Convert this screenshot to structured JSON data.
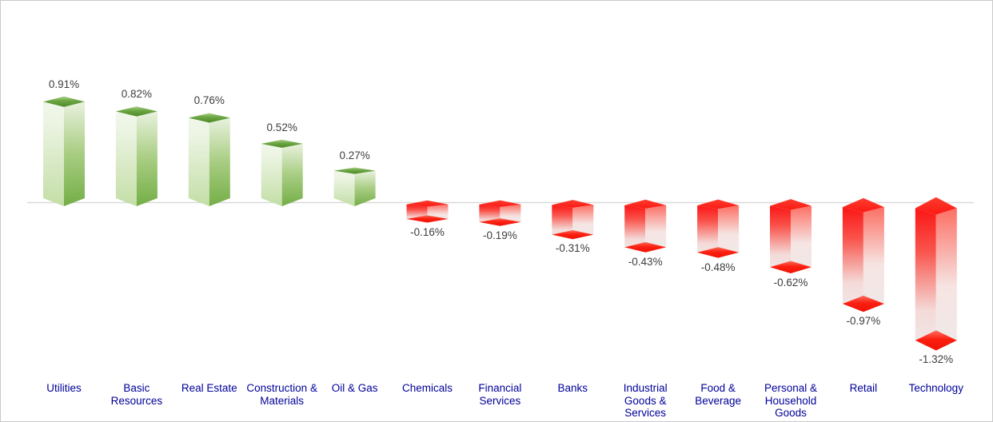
{
  "chart_data": {
    "type": "bar",
    "style": "3d-column",
    "title": "",
    "xlabel": "",
    "ylabel": "",
    "grid": false,
    "legend": "none",
    "ylim": [
      -1.5,
      1.0
    ],
    "categories": [
      "Utilities",
      "Basic\nResources",
      "Real Estate",
      "Construction &\nMaterials",
      "Oil & Gas",
      "Chemicals",
      "Financial\nServices",
      "Banks",
      "Industrial\nGoods &\nServices",
      "Food &\nBeverage",
      "Personal &\nHousehold\nGoods",
      "Retail",
      "Technology"
    ],
    "values": [
      0.91,
      0.82,
      0.76,
      0.52,
      0.27,
      -0.16,
      -0.19,
      -0.31,
      -0.43,
      -0.48,
      -0.62,
      -0.97,
      -1.32
    ],
    "data_labels": [
      "0.91%",
      "0.82%",
      "0.76%",
      "0.52%",
      "0.27%",
      "-0.16%",
      "-0.19%",
      "-0.31%",
      "-0.43%",
      "-0.48%",
      "-0.62%",
      "-0.97%",
      "-1.32%"
    ],
    "colors": {
      "positive": "#5d9733",
      "negative": "#fb1d1d",
      "value_label": "#3d3d3d",
      "category_label": "#000099",
      "axis_line": "#d9d9d9"
    }
  }
}
